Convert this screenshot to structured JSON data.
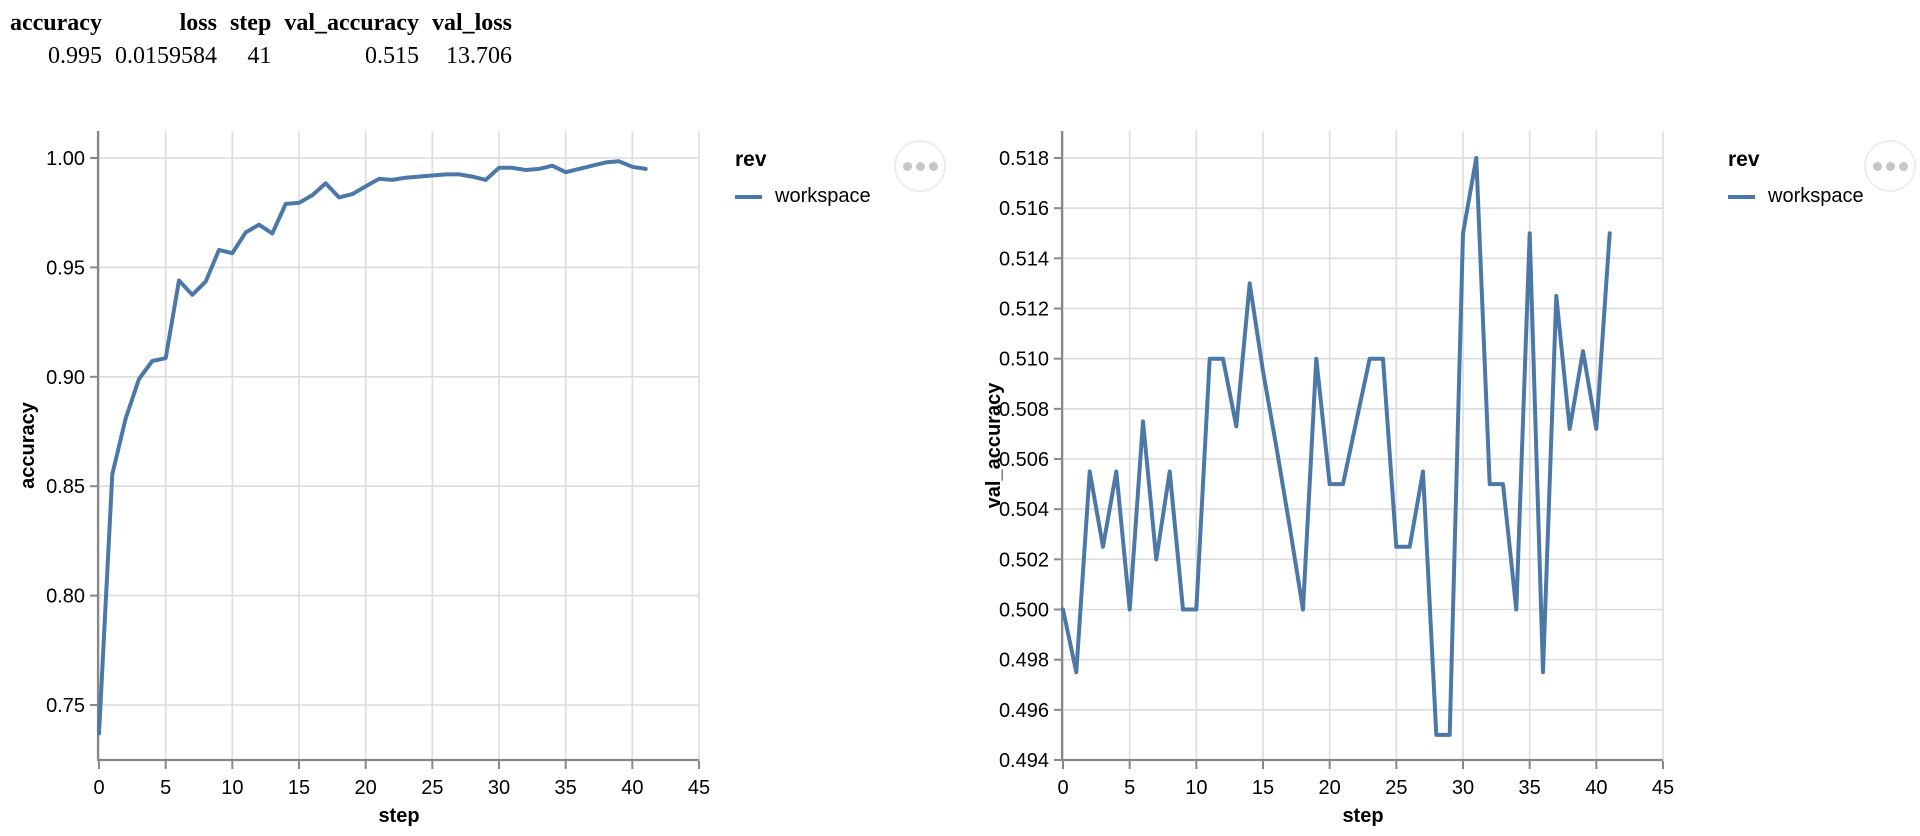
{
  "metrics_table": {
    "columns": [
      "accuracy",
      "loss",
      "step",
      "val_accuracy",
      "val_loss"
    ],
    "values": [
      "0.995",
      "0.0159584",
      "41",
      "0.515",
      "13.706"
    ]
  },
  "colors": {
    "line": "#4c78a8",
    "grid": "#dcdcdc",
    "axis": "#888888",
    "menu_dots": "#c6c6c6",
    "menu_border": "#ededed"
  },
  "chart_data": [
    {
      "type": "line",
      "title": "",
      "xlabel": "step",
      "ylabel": "accuracy",
      "xlim": [
        0,
        45
      ],
      "ylim": [
        0.75,
        1.0
      ],
      "grid": true,
      "x_ticks": [
        0,
        5,
        10,
        15,
        20,
        25,
        30,
        35,
        40,
        45
      ],
      "y_ticks": [
        0.75,
        0.8,
        0.85,
        0.9,
        0.95,
        1.0
      ],
      "y_tick_decimals": 2,
      "line_color": "#4c78a8",
      "legend": {
        "title": "rev",
        "position": "right",
        "entries": [
          {
            "label": "workspace",
            "color": "#4c78a8"
          }
        ]
      },
      "menu_icon": "ellipsis-icon",
      "series": [
        {
          "name": "workspace",
          "x": [
            0,
            1,
            2,
            3,
            4,
            5,
            6,
            7,
            8,
            9,
            10,
            11,
            12,
            13,
            14,
            15,
            16,
            17,
            18,
            19,
            20,
            21,
            22,
            23,
            24,
            25,
            26,
            27,
            28,
            29,
            30,
            31,
            32,
            33,
            34,
            35,
            36,
            37,
            38,
            39,
            40,
            41
          ],
          "values": [
            0.737,
            0.8555,
            0.881,
            0.899,
            0.9072,
            0.9085,
            0.944,
            0.9375,
            0.9435,
            0.958,
            0.9565,
            0.966,
            0.9695,
            0.9655,
            0.979,
            0.9795,
            0.983,
            0.9885,
            0.982,
            0.9835,
            0.987,
            0.9905,
            0.99,
            0.991,
            0.9915,
            0.992,
            0.9925,
            0.9925,
            0.9915,
            0.99,
            0.9955,
            0.9955,
            0.9945,
            0.995,
            0.9965,
            0.9935,
            0.995,
            0.9965,
            0.998,
            0.9985,
            0.996,
            0.995
          ]
        }
      ]
    },
    {
      "type": "line",
      "title": "",
      "xlabel": "step",
      "ylabel": "val_accuracy",
      "xlim": [
        0,
        45
      ],
      "ylim": [
        0.494,
        0.518
      ],
      "grid": true,
      "x_ticks": [
        0,
        5,
        10,
        15,
        20,
        25,
        30,
        35,
        40,
        45
      ],
      "y_ticks": [
        0.494,
        0.496,
        0.498,
        0.5,
        0.502,
        0.504,
        0.506,
        0.508,
        0.51,
        0.512,
        0.514,
        0.516,
        0.518
      ],
      "y_tick_decimals": 3,
      "line_color": "#4c78a8",
      "legend": {
        "title": "rev",
        "position": "right",
        "entries": [
          {
            "label": "workspace",
            "color": "#4c78a8"
          }
        ]
      },
      "menu_icon": "ellipsis-icon",
      "series": [
        {
          "name": "workspace",
          "x": [
            0,
            1,
            2,
            3,
            4,
            5,
            6,
            7,
            8,
            9,
            10,
            11,
            12,
            13,
            14,
            15,
            16,
            17,
            18,
            19,
            20,
            21,
            22,
            23,
            24,
            25,
            26,
            27,
            28,
            29,
            30,
            31,
            32,
            33,
            34,
            35,
            36,
            37,
            38,
            39,
            40,
            41
          ],
          "values": [
            0.5,
            0.4975,
            0.5055,
            0.5025,
            0.5055,
            0.5,
            0.5075,
            0.502,
            0.5055,
            0.5,
            0.5,
            0.51,
            0.51,
            0.5073,
            0.513,
            0.5095,
            0.5065,
            0.5033,
            0.5,
            0.51,
            0.505,
            0.505,
            0.5075,
            0.51,
            0.51,
            0.5025,
            0.5025,
            0.5055,
            0.495,
            0.495,
            0.515,
            0.518,
            0.505,
            0.505,
            0.5,
            0.515,
            0.4975,
            0.5125,
            0.5072,
            0.5103,
            0.5072,
            0.515
          ]
        }
      ]
    }
  ]
}
